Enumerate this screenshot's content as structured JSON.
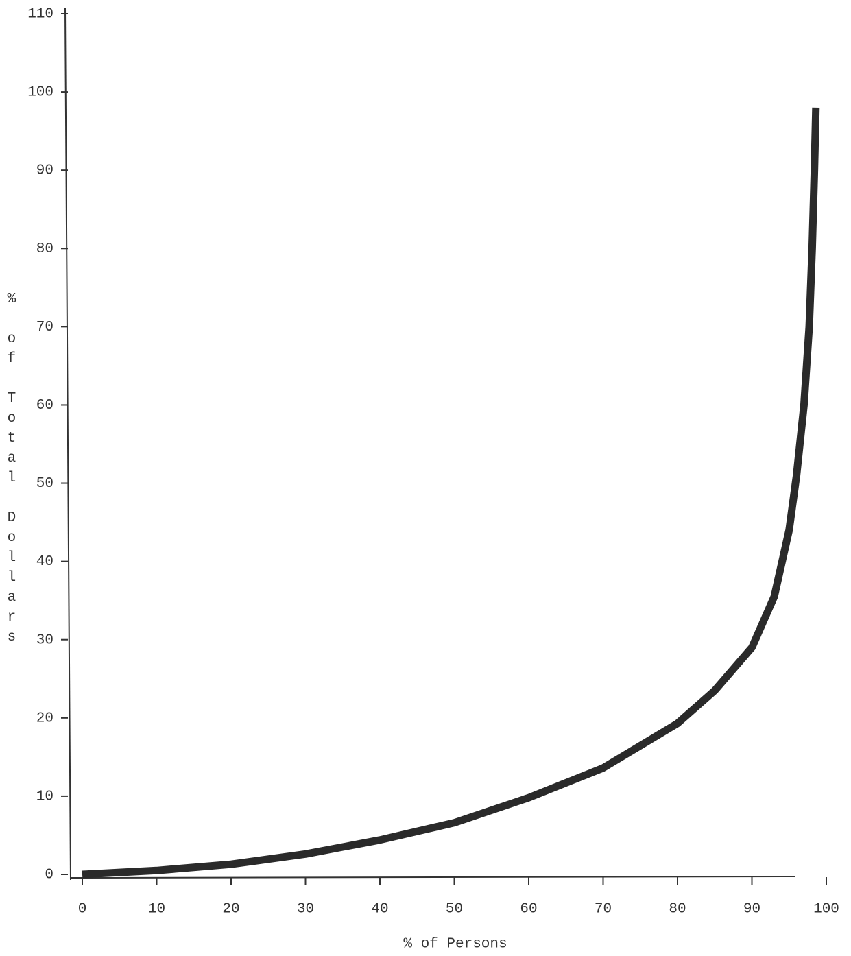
{
  "chart_data": {
    "type": "line",
    "x_label": "% of Persons",
    "y_label": "% of Total Dollars",
    "x": [
      0,
      10,
      20,
      30,
      40,
      50,
      60,
      70,
      80,
      85,
      90,
      93,
      95,
      96,
      97,
      97.7,
      98.1,
      98.4,
      98.6
    ],
    "series": [
      {
        "color": "#2a2a2a",
        "values": [
          0,
          0.5,
          1.3,
          2.6,
          4.4,
          6.6,
          9.8,
          13.6,
          19.3,
          23.5,
          29,
          35.5,
          44,
          51,
          60,
          70,
          80,
          90,
          98
        ]
      }
    ],
    "xlim": [
      0,
      100
    ],
    "xticks": [
      0,
      10,
      20,
      30,
      40,
      50,
      60,
      70,
      80,
      90,
      100
    ],
    "ylim": [
      0,
      110
    ],
    "yticks": [
      0,
      10,
      20,
      30,
      40,
      50,
      60,
      70,
      80,
      90,
      100,
      110
    ],
    "grid": false
  }
}
